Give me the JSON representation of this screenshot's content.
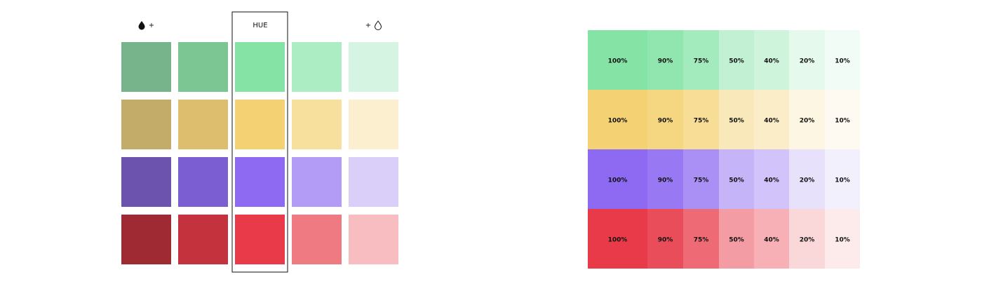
{
  "palette": {
    "headers": {
      "darker": "+",
      "hue": "HUE",
      "lighter": "+"
    },
    "rows": [
      {
        "swatches": [
          "#77b48b",
          "#7bc693",
          "#84e3a5",
          "#acedc3",
          "#d6f4e2"
        ]
      },
      {
        "swatches": [
          "#c3ab69",
          "#ddbd6e",
          "#f4d173",
          "#f7e09e",
          "#fbefcf"
        ]
      },
      {
        "swatches": [
          "#6c53ad",
          "#7c5ed3",
          "#8e6af2",
          "#b39cf5",
          "#d9cff9"
        ]
      },
      {
        "swatches": [
          "#a02a34",
          "#c4333d",
          "#e83a48",
          "#ef7a82",
          "#f7bdc1"
        ]
      }
    ]
  },
  "tints": {
    "base_colors": [
      "#84e3a5",
      "#f4d173",
      "#8e6af2",
      "#e83a48"
    ],
    "levels": [
      {
        "value": 100,
        "label": "100%"
      },
      {
        "value": 90,
        "label": "90%"
      },
      {
        "value": 75,
        "label": "75%"
      },
      {
        "value": 50,
        "label": "50%"
      },
      {
        "value": 40,
        "label": "40%"
      },
      {
        "value": 20,
        "label": "20%"
      },
      {
        "value": 10,
        "label": "10%"
      }
    ]
  }
}
